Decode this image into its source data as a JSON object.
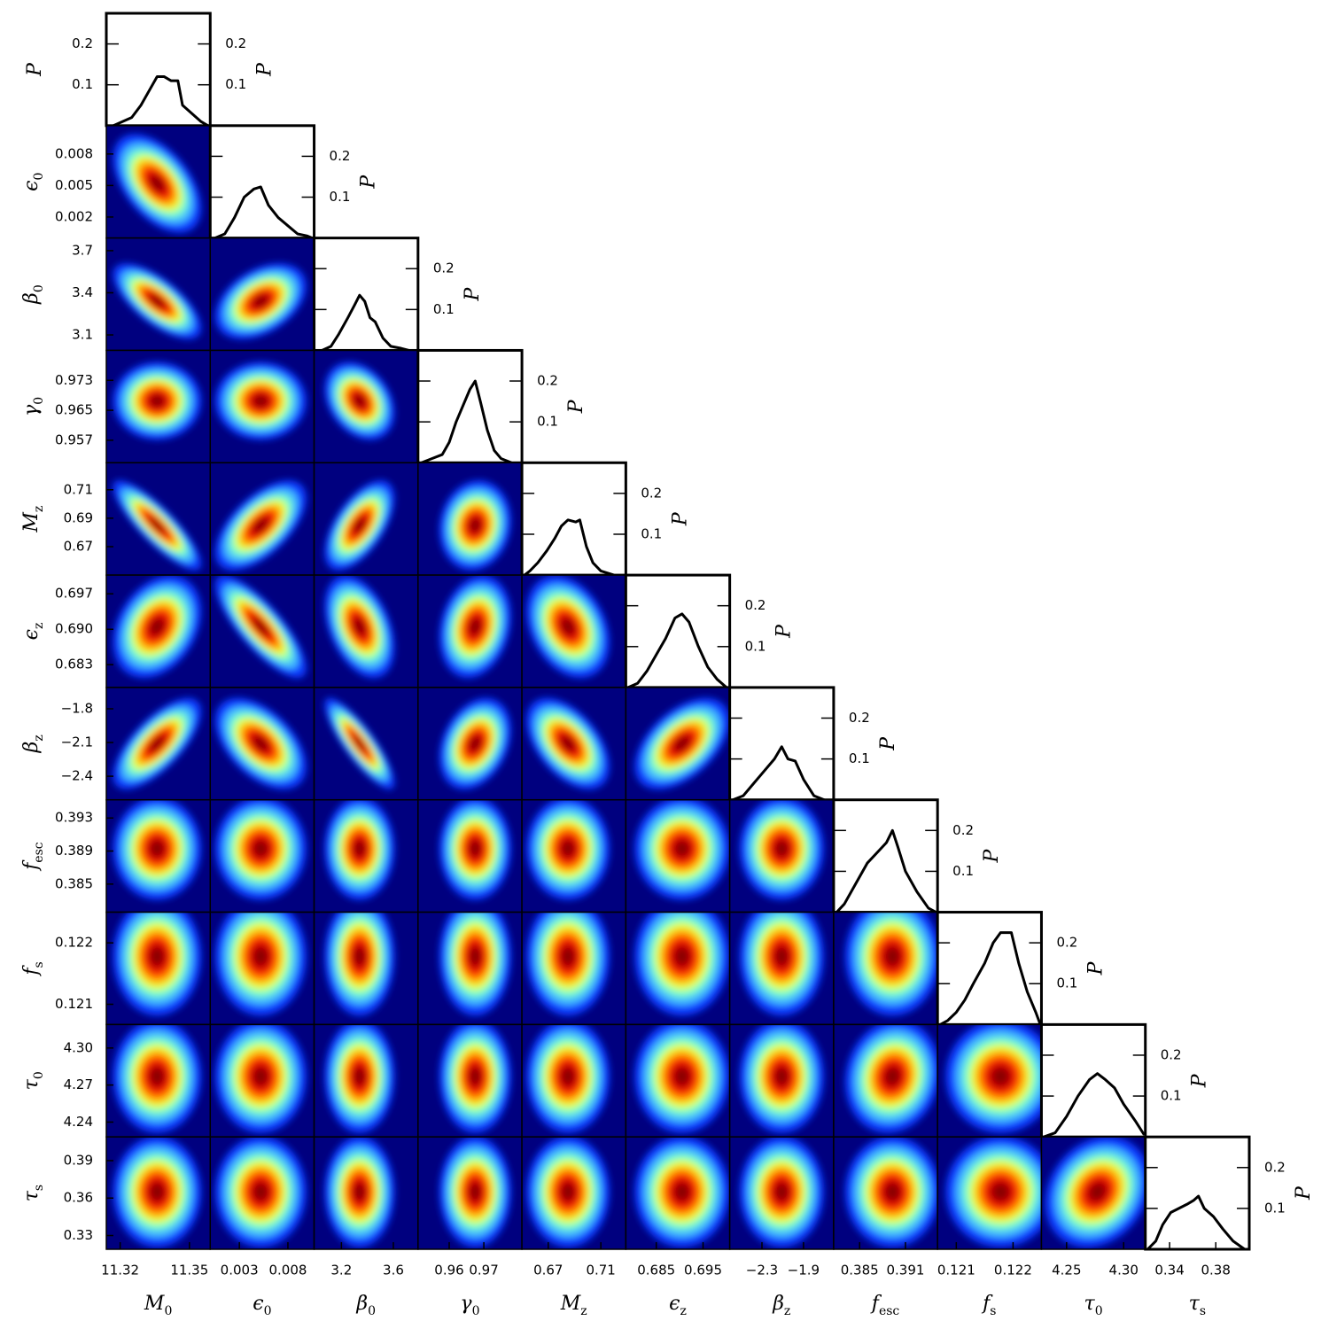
{
  "chart_data": {
    "type": "corner",
    "marginal_label": "P",
    "marginal_ylim": [
      0,
      0.275
    ],
    "marginal_yticks": [
      0.1,
      0.2
    ],
    "background": "#00007f",
    "colormap": [
      "#0a3cff",
      "#3fb8ff",
      "#7dffc8",
      "#e6ff3a",
      "#ffb000",
      "#ff4000",
      "#d40000",
      "#8a0000"
    ],
    "parameters": [
      {
        "symbol": "M",
        "sub": "0",
        "lim": [
          11.314,
          11.359
        ],
        "xticks": [
          11.32,
          11.35
        ],
        "marginal": {
          "x": [
            11.317,
            11.321,
            11.325,
            11.329,
            11.333,
            11.336,
            11.339,
            11.342,
            11.345,
            11.347,
            11.351,
            11.355,
            11.358
          ],
          "P": [
            0,
            0.01,
            0.02,
            0.05,
            0.09,
            0.12,
            0.12,
            0.11,
            0.11,
            0.05,
            0.03,
            0.01,
            0
          ]
        }
      },
      {
        "symbol": "ϵ",
        "sub": "0",
        "lim": [
          0,
          0.0107
        ],
        "xticks": [
          0.003,
          0.008
        ],
        "yticks": [
          0.002,
          0.005,
          0.008
        ],
        "marginal": {
          "x": [
            0.0005,
            0.0015,
            0.0025,
            0.0035,
            0.0045,
            0.0052,
            0.006,
            0.007,
            0.008,
            0.009,
            0.01,
            0.0105
          ],
          "P": [
            0,
            0.01,
            0.05,
            0.1,
            0.12,
            0.125,
            0.08,
            0.05,
            0.03,
            0.01,
            0.005,
            0
          ]
        }
      },
      {
        "symbol": "β",
        "sub": "0",
        "lim": [
          2.99,
          3.79
        ],
        "xticks": [
          3.2,
          3.6
        ],
        "yticks": [
          3.1,
          3.4,
          3.7
        ],
        "marginal": {
          "x": [
            3.05,
            3.12,
            3.18,
            3.25,
            3.3,
            3.34,
            3.38,
            3.42,
            3.46,
            3.52,
            3.58,
            3.66,
            3.72
          ],
          "P": [
            0,
            0.01,
            0.04,
            0.08,
            0.11,
            0.135,
            0.12,
            0.08,
            0.07,
            0.03,
            0.01,
            0.005,
            0
          ]
        }
      },
      {
        "symbol": "γ",
        "sub": "0",
        "lim": [
          0.951,
          0.981
        ],
        "xticks": [
          0.96,
          0.97
        ],
        "yticks": [
          0.957,
          0.965,
          0.973
        ],
        "marginal": {
          "x": [
            0.952,
            0.955,
            0.958,
            0.96,
            0.962,
            0.964,
            0.966,
            0.9675,
            0.969,
            0.971,
            0.973,
            0.975,
            0.978
          ],
          "P": [
            0,
            0.01,
            0.02,
            0.05,
            0.1,
            0.14,
            0.18,
            0.2,
            0.15,
            0.08,
            0.03,
            0.01,
            0
          ]
        }
      },
      {
        "symbol": "M",
        "sub": "z",
        "lim": [
          0.65,
          0.729
        ],
        "xticks": [
          0.67,
          0.71
        ],
        "yticks": [
          0.67,
          0.69,
          0.71
        ],
        "marginal": {
          "x": [
            0.652,
            0.656,
            0.662,
            0.669,
            0.675,
            0.68,
            0.685,
            0.691,
            0.694,
            0.699,
            0.704,
            0.71,
            0.72
          ],
          "P": [
            0,
            0.01,
            0.03,
            0.06,
            0.09,
            0.12,
            0.135,
            0.13,
            0.135,
            0.07,
            0.03,
            0.01,
            0
          ]
        }
      },
      {
        "symbol": "ϵ",
        "sub": "z",
        "lim": [
          0.6785,
          0.7007
        ],
        "xticks": [
          0.685,
          0.695
        ],
        "yticks": [
          0.683,
          {
            "value": 0.69,
            "label": "0.690"
          },
          0.697
        ],
        "marginal": {
          "x": [
            0.679,
            0.681,
            0.683,
            0.685,
            0.687,
            0.689,
            0.6905,
            0.692,
            0.694,
            0.696,
            0.698,
            0.7
          ],
          "P": [
            0,
            0.01,
            0.04,
            0.08,
            0.12,
            0.17,
            0.18,
            0.16,
            0.1,
            0.05,
            0.02,
            0
          ]
        }
      },
      {
        "symbol": "β",
        "sub": "z",
        "lim": [
          -2.61,
          -1.61
        ],
        "xticks": [
          {
            "value": -2.3,
            "label": "−2.3"
          },
          {
            "value": -1.9,
            "label": "−1.9"
          }
        ],
        "yticks": [
          {
            "value": -2.4,
            "label": "−2.4"
          },
          {
            "value": -2.1,
            "label": "−2.1"
          },
          {
            "value": -1.8,
            "label": "−1.8"
          }
        ],
        "marginal": {
          "x": [
            -2.58,
            -2.48,
            -2.38,
            -2.28,
            -2.18,
            -2.11,
            -2.05,
            -1.98,
            -1.9,
            -1.8,
            -1.7
          ],
          "P": [
            0,
            0.01,
            0.04,
            0.07,
            0.1,
            0.13,
            0.1,
            0.095,
            0.05,
            0.01,
            0
          ]
        }
      },
      {
        "symbol": "f",
        "sub": "esc",
        "lim": [
          0.3816,
          0.3952
        ],
        "xticks": [
          0.385,
          0.391
        ],
        "yticks": [
          0.385,
          0.389,
          0.393
        ],
        "marginal": {
          "x": [
            0.382,
            0.383,
            0.3845,
            0.386,
            0.3875,
            0.3885,
            0.3893,
            0.39,
            0.391,
            0.3925,
            0.394,
            0.395
          ],
          "P": [
            0,
            0.02,
            0.07,
            0.12,
            0.15,
            0.17,
            0.2,
            0.16,
            0.1,
            0.05,
            0.01,
            0
          ]
        }
      },
      {
        "symbol": "f",
        "sub": "s",
        "lim": [
          0.12067,
          0.1225
        ],
        "xticks": [
          0.121,
          0.122
        ],
        "yticks": [
          0.121,
          0.122
        ],
        "marginal": {
          "x": [
            0.12072,
            0.12085,
            0.121,
            0.12115,
            0.1213,
            0.1215,
            0.12165,
            0.12178,
            0.12197,
            0.1221,
            0.12225,
            0.1224,
            0.12248
          ],
          "P": [
            0,
            0.01,
            0.03,
            0.06,
            0.1,
            0.15,
            0.2,
            0.225,
            0.225,
            0.15,
            0.08,
            0.03,
            0
          ]
        }
      },
      {
        "symbol": "τ",
        "sub": "0",
        "lim": [
          4.228,
          4.319
        ],
        "xticks": [
          4.25,
          {
            "value": 4.3,
            "label": "4.30"
          }
        ],
        "yticks": [
          4.24,
          4.27,
          {
            "value": 4.3,
            "label": "4.30"
          }
        ],
        "marginal": {
          "x": [
            4.23,
            4.24,
            4.25,
            4.26,
            4.27,
            4.277,
            4.284,
            4.292,
            4.3,
            4.31,
            4.318
          ],
          "P": [
            0,
            0.01,
            0.05,
            0.1,
            0.14,
            0.155,
            0.14,
            0.12,
            0.08,
            0.04,
            0.005
          ]
        }
      },
      {
        "symbol": "τ",
        "sub": "s",
        "lim": [
          0.319,
          0.409
        ],
        "xticks": [
          0.34,
          0.38
        ],
        "yticks": [
          0.33,
          0.36,
          0.39
        ],
        "marginal": {
          "x": [
            0.321,
            0.328,
            0.334,
            0.341,
            0.348,
            0.355,
            0.361,
            0.365,
            0.37,
            0.378,
            0.386,
            0.395,
            0.405
          ],
          "P": [
            0,
            0.02,
            0.06,
            0.09,
            0.1,
            0.11,
            0.12,
            0.13,
            0.1,
            0.08,
            0.05,
            0.02,
            0
          ]
        }
      }
    ],
    "correlations": [
      [],
      [
        -0.5
      ],
      [
        -0.7,
        0.4
      ],
      [
        0,
        0,
        -0.3
      ],
      [
        -0.85,
        0.6,
        0.6,
        0.1
      ],
      [
        0.3,
        -0.8,
        -0.4,
        0.2,
        -0.3
      ],
      [
        0.7,
        -0.5,
        -0.85,
        0.3,
        -0.5,
        0.5
      ],
      [
        0,
        0,
        0,
        0,
        0,
        0,
        0
      ],
      [
        0,
        0,
        0,
        0,
        0,
        0,
        0,
        0
      ],
      [
        0,
        0,
        0,
        0,
        0,
        0,
        0,
        0.1,
        0
      ],
      [
        0,
        0,
        0,
        0,
        0,
        0,
        0,
        0,
        0,
        0.2
      ]
    ]
  }
}
